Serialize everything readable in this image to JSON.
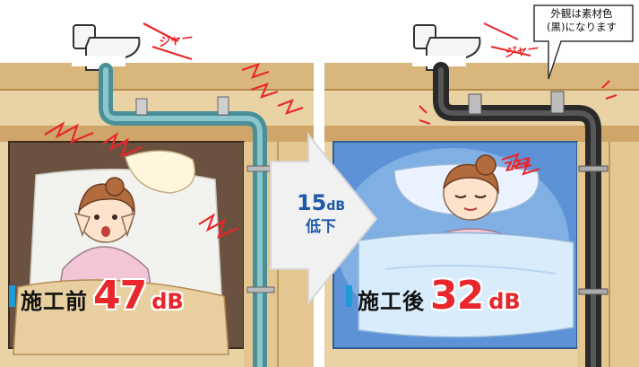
{
  "before": {
    "title": "施工前",
    "level_value": "47",
    "level_unit": "dB",
    "flush_sound": "ジャー"
  },
  "after": {
    "title": "施工後",
    "level_value": "32",
    "level_unit": "dB",
    "flush_sound": "ジャー",
    "sleep_sound": "ZZZ"
  },
  "reduction": {
    "value": "15",
    "unit": "dB",
    "label": "低下"
  },
  "callout": {
    "line1": "外観は素材色",
    "line2": "(黒)になります"
  }
}
